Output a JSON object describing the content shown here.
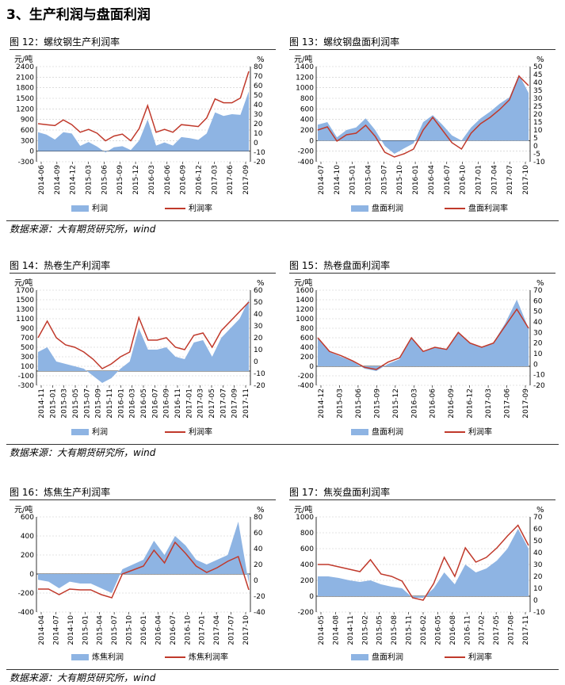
{
  "section_title": "3、生产利润与盘面利润",
  "colors": {
    "area": "#8eb4e3",
    "line": "#c0392b"
  },
  "sources": [
    "数据来源：大有期货研究所，wind",
    "数据来源：大有期货研究所，wind",
    "数据来源：大有期货研究所，wind"
  ],
  "charts": [
    {
      "id": "c12",
      "title": "图 12：螺纹钢生产利润率",
      "chart_data": {
        "type": "area+line",
        "left_unit": "元/吨",
        "right_unit": "%",
        "left_ylim": [
          -300,
          2400
        ],
        "left_ticks": [
          -300,
          0,
          300,
          600,
          900,
          1200,
          1500,
          1800,
          2100,
          2400
        ],
        "right_ylim": [
          -20,
          80
        ],
        "right_ticks": [
          -20,
          -10,
          0,
          10,
          20,
          30,
          40,
          50,
          60,
          70,
          80
        ],
        "x_labels": [
          "2014-06",
          "2014-09",
          "2014-12",
          "2015-03",
          "2015-06",
          "2015-09",
          "2015-12",
          "2016-03",
          "2016-06",
          "2016-09",
          "2016-12",
          "2017-03",
          "2017-06",
          "2017-09"
        ],
        "series": [
          {
            "name": "利润",
            "type": "area",
            "axis": "left",
            "values": [
              540,
              470,
              330,
              540,
              500,
              150,
              260,
              130,
              -40,
              110,
              140,
              30,
              300,
              900,
              160,
              250,
              160,
              400,
              370,
              320,
              500,
              1100,
              1000,
              1050,
              1030,
              1700
            ]
          },
          {
            "name": "利润率",
            "type": "line",
            "axis": "right",
            "values": [
              20,
              19,
              18,
              24,
              19,
              11,
              14,
              10,
              2,
              7,
              9,
              2,
              15,
              39,
              11,
              14,
              11,
              19,
              18,
              17,
              26,
              46,
              42,
              42,
              47,
              75
            ]
          }
        ]
      }
    },
    {
      "id": "c13",
      "title": "图 13：螺纹钢盘面利润率",
      "chart_data": {
        "type": "area+line",
        "left_unit": "元/吨",
        "right_unit": "%",
        "left_ylim": [
          -400,
          1400
        ],
        "left_ticks": [
          -400,
          -200,
          0,
          200,
          400,
          600,
          800,
          1000,
          1200,
          1400
        ],
        "right_ylim": [
          -10,
          50
        ],
        "right_ticks": [
          -10,
          -5,
          0,
          5,
          10,
          15,
          20,
          25,
          30,
          35,
          40,
          45,
          50
        ],
        "x_labels": [
          "2014-07",
          "2014-10",
          "2015-01",
          "2015-04",
          "2015-07",
          "2015-10",
          "2016-01",
          "2016-04",
          "2016-07",
          "2016-10",
          "2017-01",
          "2017-04",
          "2017-07",
          "2017-10"
        ],
        "series": [
          {
            "name": "盘面利润",
            "type": "area",
            "axis": "left",
            "values": [
              300,
              350,
              60,
              200,
              250,
              420,
              200,
              -100,
              -250,
              -150,
              -50,
              350,
              480,
              300,
              100,
              0,
              250,
              420,
              550,
              700,
              820,
              1250,
              900
            ]
          },
          {
            "name": "盘面利润率",
            "type": "line",
            "axis": "right",
            "values": [
              10,
              12,
              3,
              7,
              8,
              13,
              6,
              -4,
              -7,
              -5,
              -2,
              10,
              18,
              10,
              2,
              -2,
              8,
              14,
              18,
              23,
              29,
              44,
              38
            ]
          }
        ]
      }
    },
    {
      "id": "c14",
      "title": "图 14：热卷生产利润率",
      "chart_data": {
        "type": "area+line",
        "left_unit": "元/吨",
        "right_unit": "%",
        "left_ylim": [
          -300,
          1700
        ],
        "left_ticks": [
          -300,
          -100,
          100,
          300,
          500,
          700,
          900,
          1100,
          1300,
          1500,
          1700
        ],
        "right_ylim": [
          -20,
          60
        ],
        "right_ticks": [
          -20,
          -10,
          0,
          10,
          20,
          30,
          40,
          50,
          60
        ],
        "x_labels": [
          "2014-11",
          "2015-01",
          "2015-03",
          "2015-05",
          "2015-07",
          "2015-09",
          "2015-11",
          "2016-01",
          "2016-03",
          "2016-05",
          "2016-07",
          "2016-09",
          "2016-11",
          "2017-01",
          "2017-03",
          "2017-05",
          "2017-07",
          "2017-09",
          "2017-11"
        ],
        "series": [
          {
            "name": "利润",
            "type": "area",
            "axis": "left",
            "values": [
              400,
              500,
              200,
              150,
              100,
              50,
              -100,
              -250,
              -150,
              50,
              200,
              900,
              450,
              450,
              500,
              300,
              250,
              600,
              650,
              300,
              700,
              900,
              1100,
              1500
            ]
          },
          {
            "name": "利润率",
            "type": "line",
            "axis": "right",
            "values": [
              20,
              34,
              20,
              14,
              12,
              8,
              2,
              -6,
              -2,
              4,
              8,
              37,
              18,
              18,
              20,
              12,
              10,
              22,
              24,
              12,
              26,
              34,
              42,
              50
            ]
          }
        ]
      }
    },
    {
      "id": "c15",
      "title": "图 15：热卷盘面利润率",
      "chart_data": {
        "type": "area+line",
        "left_unit": "元/吨",
        "right_unit": "%",
        "left_ylim": [
          -400,
          1600
        ],
        "left_ticks": [
          -400,
          -200,
          0,
          200,
          400,
          600,
          800,
          1000,
          1200,
          1400,
          1600
        ],
        "right_ylim": [
          -20,
          70
        ],
        "right_ticks": [
          -20,
          -10,
          0,
          10,
          20,
          30,
          40,
          50,
          60,
          70
        ],
        "x_labels": [
          "2014-12",
          "2015-03",
          "2015-06",
          "2015-09",
          "2015-12",
          "2016-03",
          "2016-06",
          "2016-09",
          "2016-12",
          "2017-03",
          "2017-06",
          "2017-09"
        ],
        "series": [
          {
            "name": "盘面利润",
            "type": "area",
            "axis": "left",
            "values": [
              600,
              300,
              200,
              100,
              -50,
              -100,
              50,
              150,
              600,
              300,
              400,
              350,
              700,
              500,
              400,
              500,
              900,
              1400,
              800
            ]
          },
          {
            "name": "利润率",
            "type": "line",
            "axis": "right",
            "values": [
              25,
              12,
              8,
              3,
              -3,
              -5,
              2,
              6,
              25,
              12,
              16,
              14,
              30,
              20,
              16,
              20,
              36,
              52,
              34
            ]
          }
        ]
      }
    },
    {
      "id": "c16",
      "title": "图 16：炼焦生产利润率",
      "chart_data": {
        "type": "area+line",
        "left_unit": "元/吨",
        "right_unit": "%",
        "left_ylim": [
          -400,
          600
        ],
        "left_ticks": [
          -400,
          -200,
          0,
          200,
          400,
          600
        ],
        "right_ylim": [
          -40,
          80
        ],
        "right_ticks": [
          -40,
          -20,
          0,
          20,
          40,
          60,
          80
        ],
        "x_labels": [
          "2014-04",
          "2014-07",
          "2014-10",
          "2015-01",
          "2015-04",
          "2015-07",
          "2015-10",
          "2016-01",
          "2016-04",
          "2016-07",
          "2016-10",
          "2017-01",
          "2017-04",
          "2017-07",
          "2017-10"
        ],
        "series": [
          {
            "name": "炼焦利润",
            "type": "area",
            "axis": "left",
            "values": [
              -60,
              -80,
              -150,
              -80,
              -100,
              -100,
              -150,
              -200,
              50,
              100,
              150,
              350,
              200,
              400,
              300,
              150,
              100,
              150,
              200,
              550,
              -100
            ]
          },
          {
            "name": "炼焦利润率",
            "type": "line",
            "axis": "right",
            "values": [
              -11,
              -11,
              -18,
              -11,
              -12,
              -12,
              -18,
              -22,
              8,
              13,
              18,
              38,
              22,
              48,
              34,
              18,
              10,
              16,
              24,
              30,
              -12
            ]
          }
        ]
      }
    },
    {
      "id": "c17",
      "title": "图 17：焦炭盘面利润率",
      "chart_data": {
        "type": "area+line",
        "left_unit": "元/吨",
        "right_unit": "%",
        "left_ylim": [
          -200,
          1000
        ],
        "left_ticks": [
          -200,
          0,
          200,
          400,
          600,
          800,
          1000
        ],
        "right_ylim": [
          -10,
          70
        ],
        "right_ticks": [
          -10,
          0,
          10,
          20,
          30,
          40,
          50,
          60,
          70
        ],
        "x_labels": [
          "2014-05",
          "2014-08",
          "2014-11",
          "2015-02",
          "2015-05",
          "2015-08",
          "2015-11",
          "2016-02",
          "2016-05",
          "2016-08",
          "2016-11",
          "2017-02",
          "2017-05",
          "2017-08",
          "2017-11"
        ],
        "series": [
          {
            "name": "盘面利润",
            "type": "area",
            "axis": "left",
            "values": [
              250,
              250,
              230,
              200,
              180,
              200,
              150,
              120,
              100,
              -20,
              -20,
              100,
              300,
              150,
              400,
              300,
              350,
              450,
              600,
              850,
              600
            ]
          },
          {
            "name": "利润率",
            "type": "line",
            "axis": "right",
            "values": [
              30,
              30,
              28,
              26,
              24,
              34,
              22,
              20,
              16,
              2,
              0,
              14,
              36,
              20,
              44,
              32,
              36,
              44,
              54,
              63,
              46
            ]
          }
        ]
      }
    }
  ]
}
